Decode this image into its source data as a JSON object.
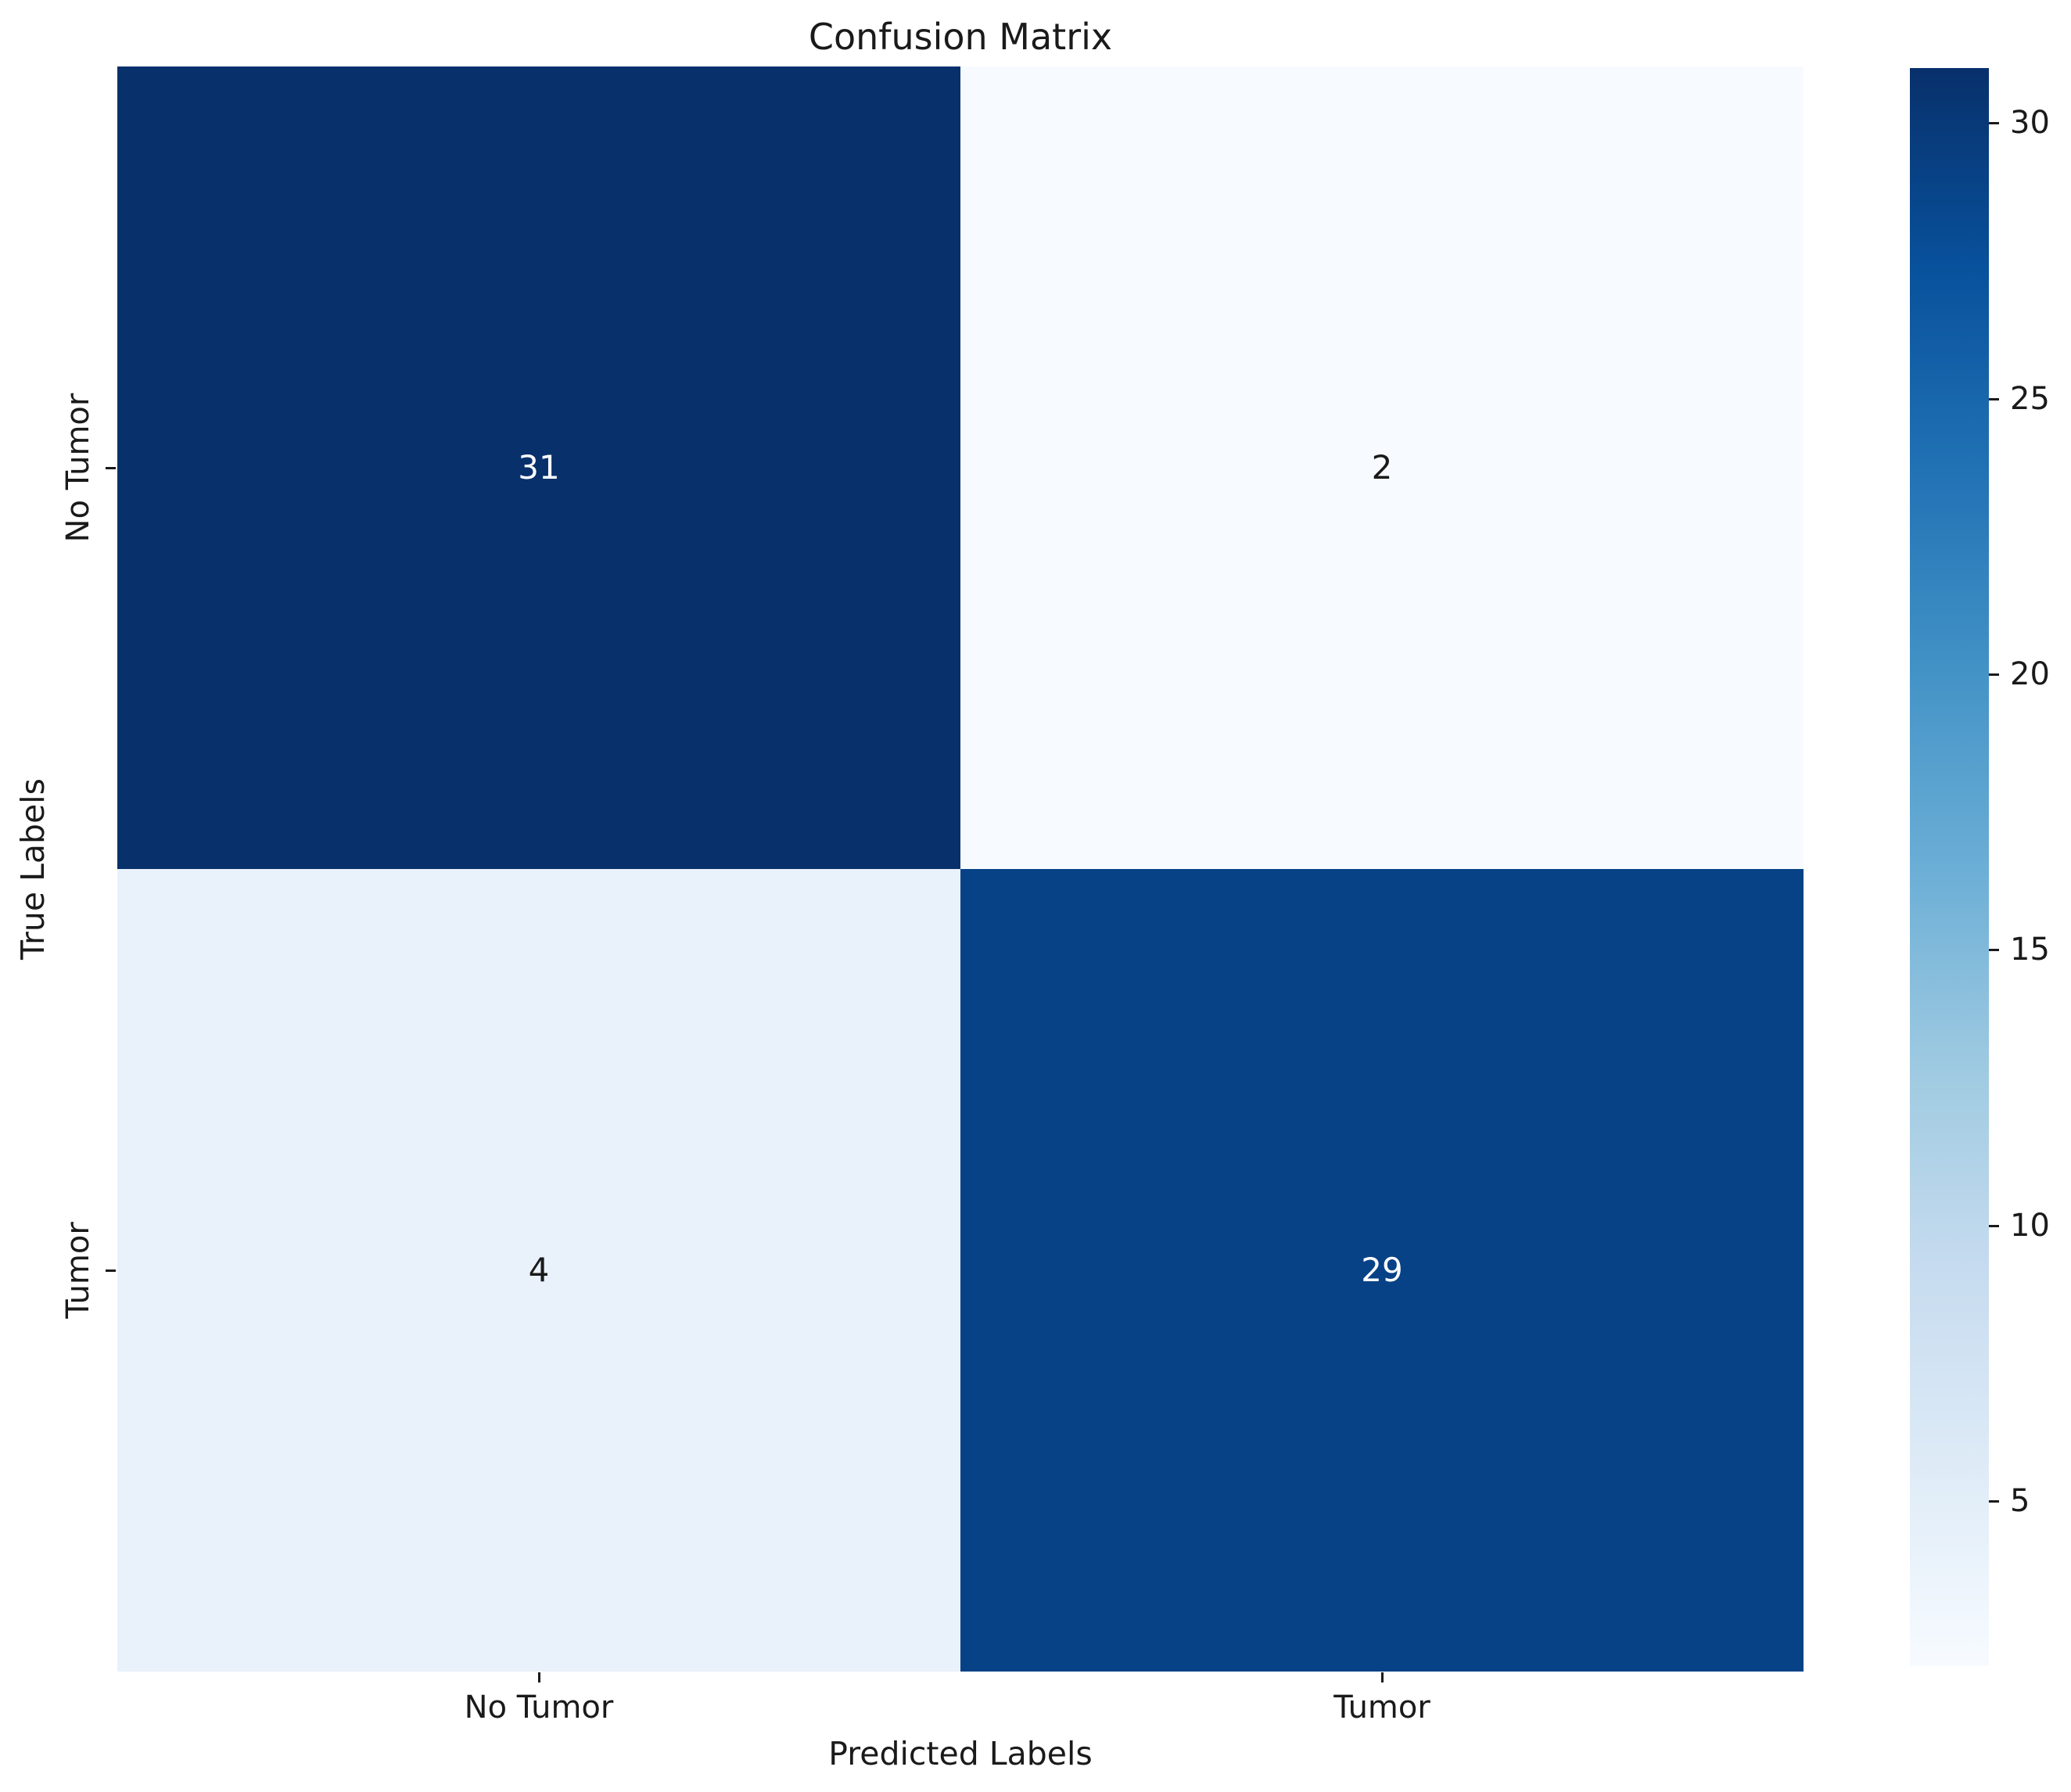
{
  "chart_data": {
    "type": "heatmap",
    "title": "Confusion Matrix",
    "xlabel": "Predicted Labels",
    "ylabel": "True Labels",
    "x_categories": [
      "No Tumor",
      "Tumor"
    ],
    "y_categories": [
      "No Tumor",
      "Tumor"
    ],
    "matrix": [
      [
        31,
        2
      ],
      [
        4,
        29
      ]
    ],
    "colormap": "Blues",
    "vmin": 2,
    "vmax": 31,
    "colorbar_ticks_top_to_bottom": [
      30,
      25,
      20,
      15,
      10,
      5
    ],
    "colorbar_position": "right",
    "grid": false,
    "cell_colors": [
      [
        "#08306b",
        "#f7fbff"
      ],
      [
        "#e9f1fa",
        "#084286"
      ]
    ],
    "annotation_colors": [
      [
        "#ffffff",
        "#1a1a1a"
      ],
      [
        "#1a1a1a",
        "#ffffff"
      ]
    ],
    "background_color": "#ffffff",
    "text_color": "#1a1a1a"
  }
}
